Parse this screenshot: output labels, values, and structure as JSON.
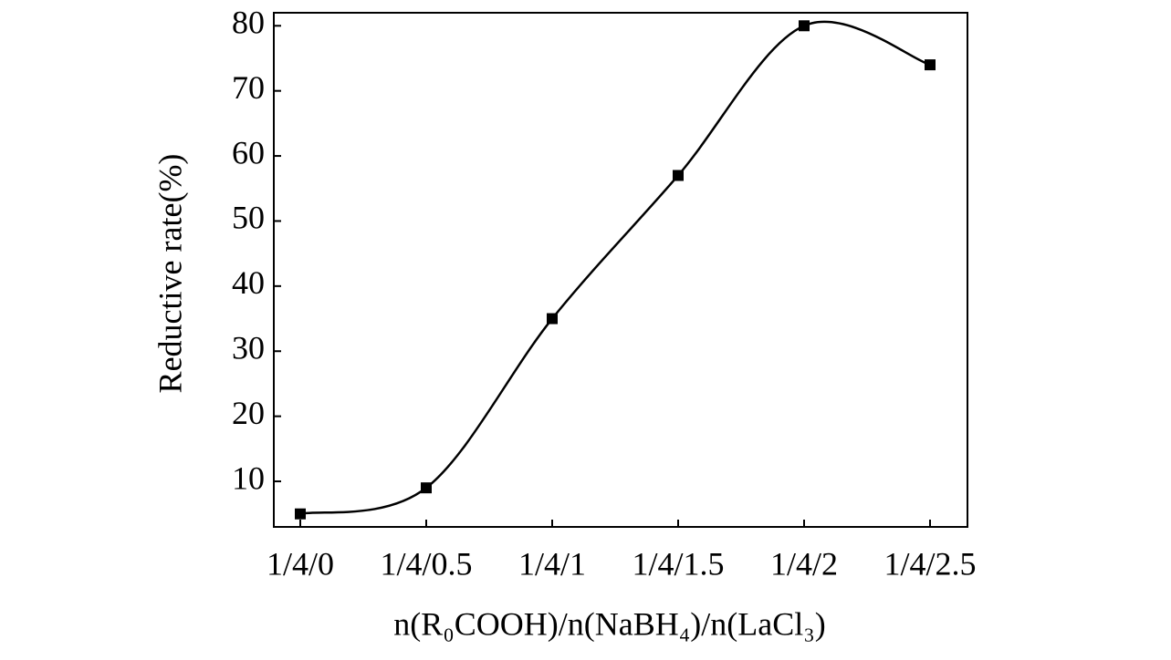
{
  "chart_data": {
    "type": "line",
    "x_label": "n(R₀COOH)/n(NaBH₄)/n(LaCl₃)",
    "y_label": "Reductive rate(%)",
    "categories": [
      "1/4/0",
      "1/4/0.5",
      "1/4/1",
      "1/4/1.5",
      "1/4/2",
      "1/4/2.5"
    ],
    "series": [
      {
        "color": "#000000",
        "values": [
          5,
          9,
          35,
          57,
          80,
          74
        ]
      }
    ],
    "ylim": [
      3,
      82
    ],
    "yticks": [
      10,
      20,
      30,
      40,
      50,
      60,
      70,
      80
    ],
    "smooth": true,
    "marker": "square"
  }
}
